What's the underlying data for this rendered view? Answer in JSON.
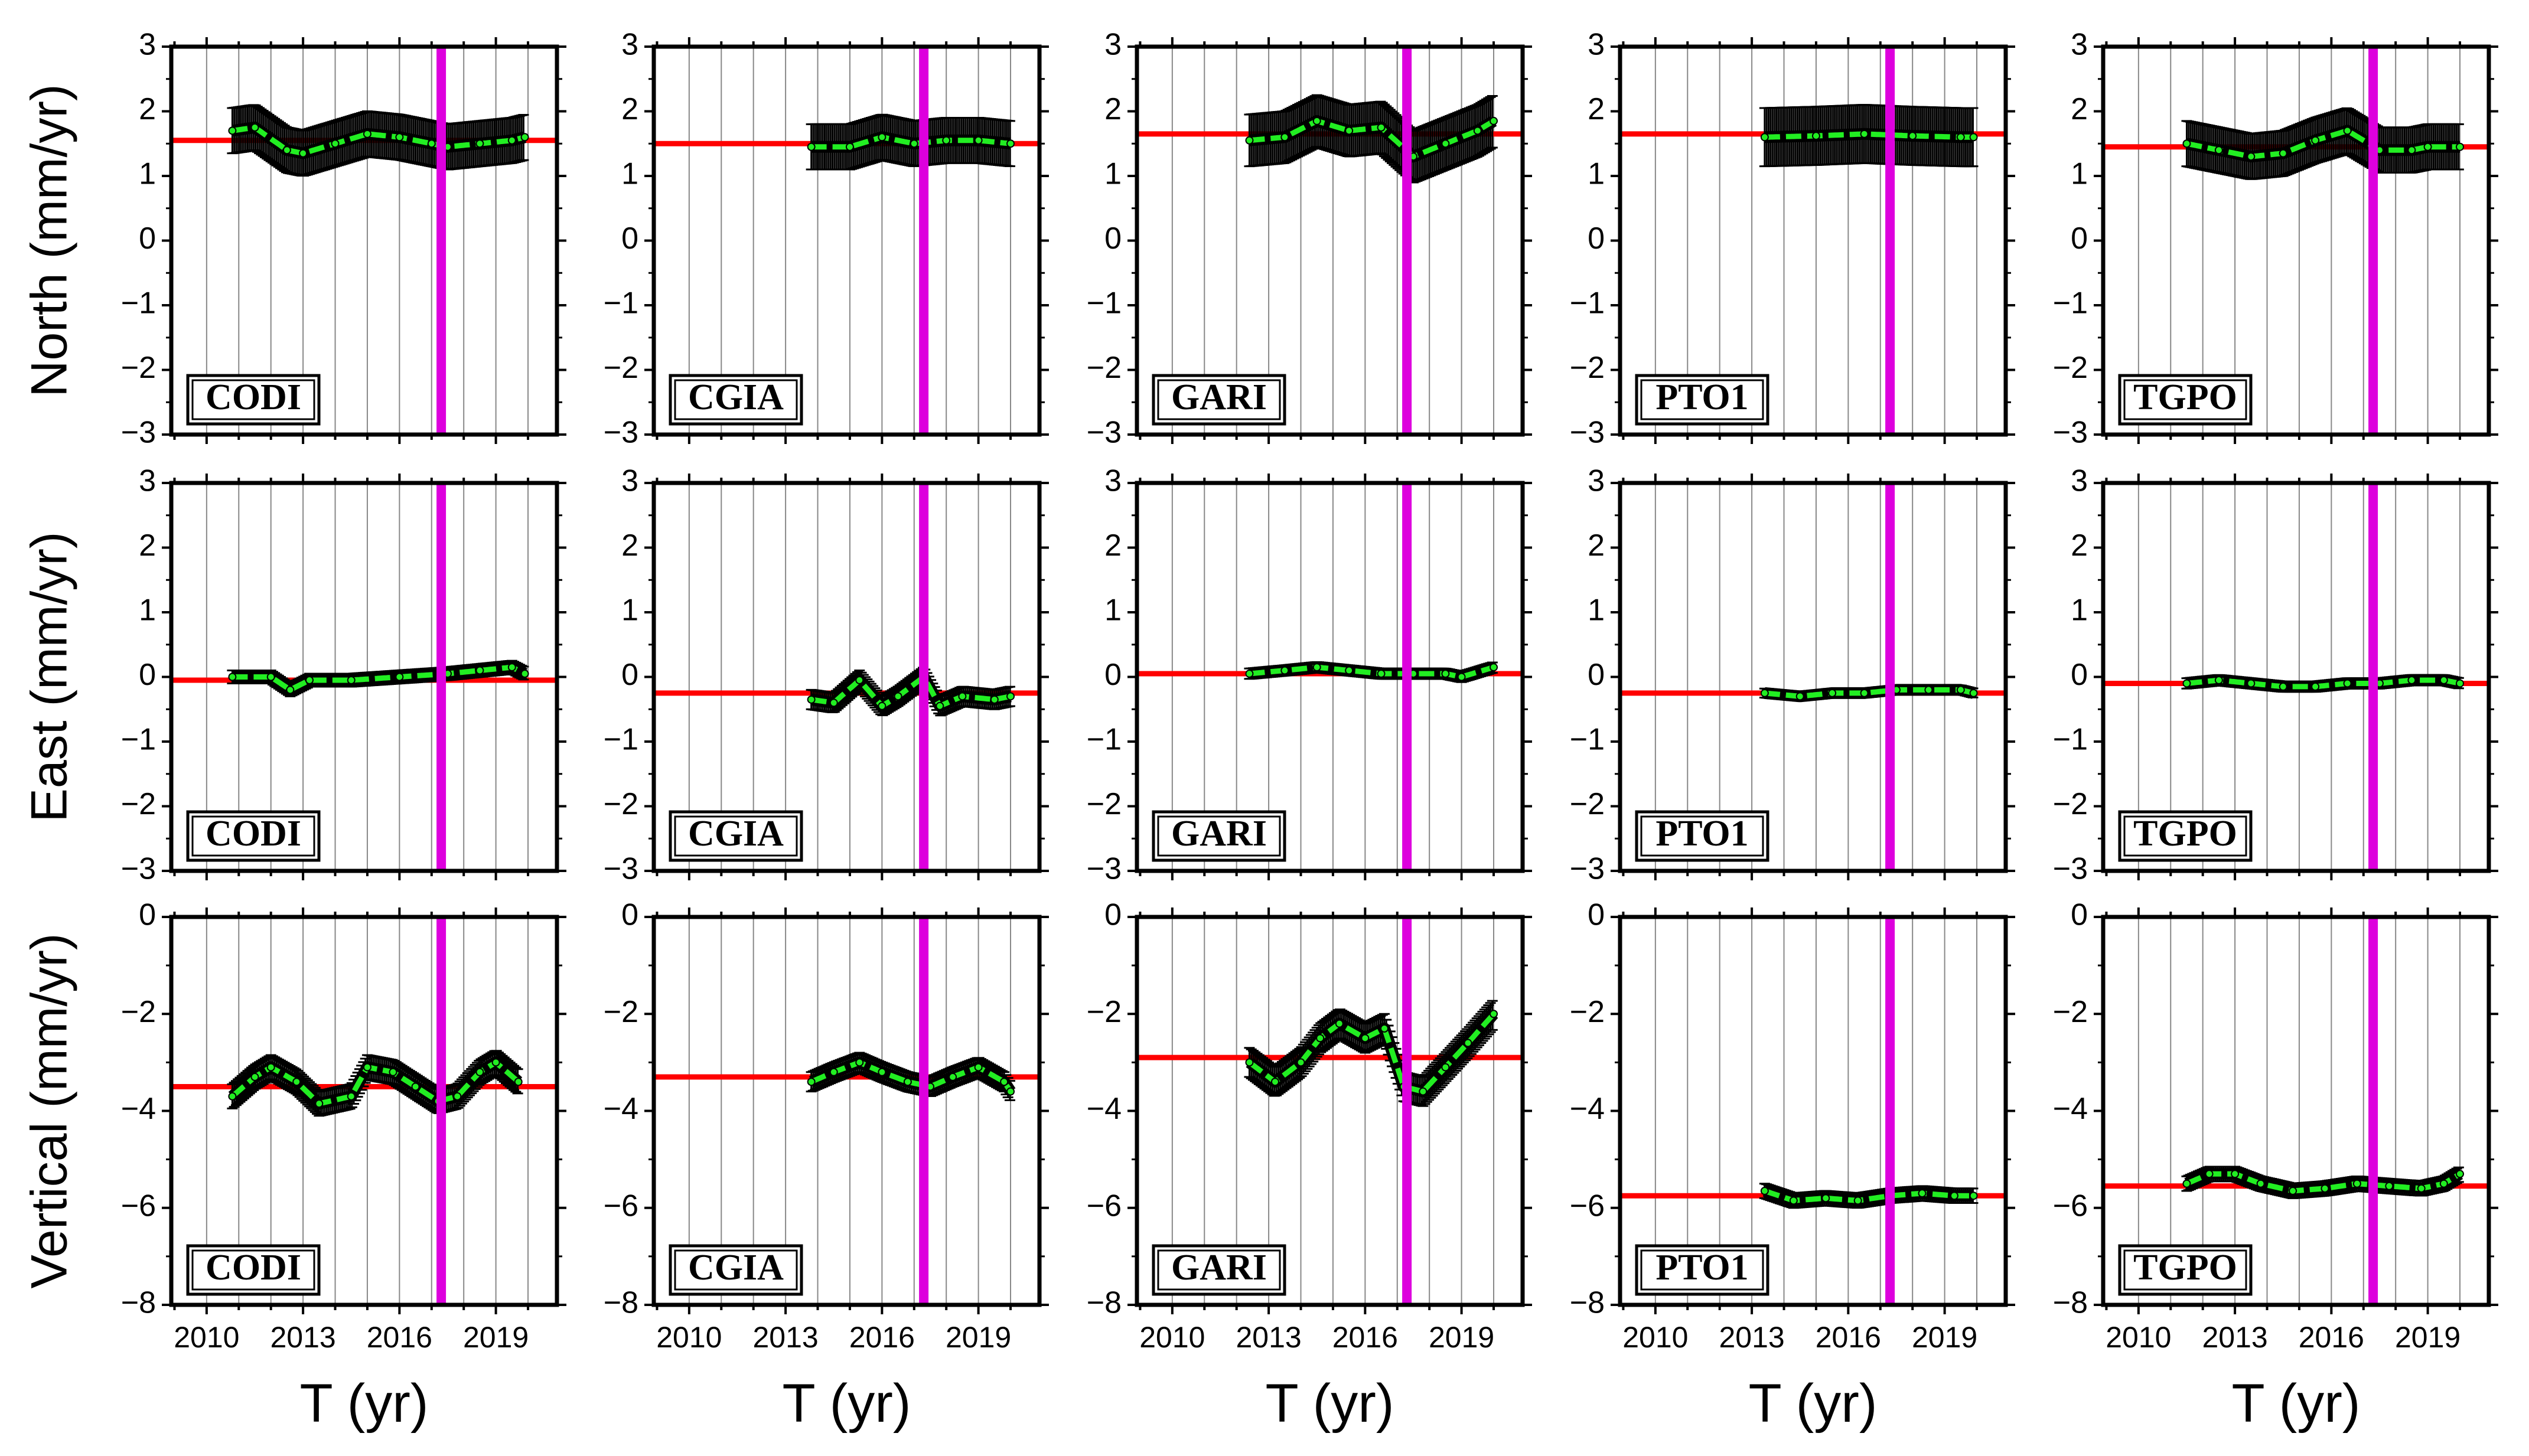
{
  "figure": {
    "row_labels": [
      "North (mm/yr)",
      "East (mm/yr)",
      "Vertical (mm/yr)"
    ],
    "xlabel": "T (yr)",
    "x_ticks": [
      "2010",
      "2013",
      "2016",
      "2019"
    ],
    "stations": [
      "CODI",
      "CGIA",
      "GARI",
      "PTO1",
      "TGPO"
    ]
  },
  "colors": {
    "reference_line": "#ff0000",
    "event_line": "#dd00dd",
    "rate_curve": "#22ee22",
    "error_bars": "#000000",
    "grid": "#888888"
  },
  "chart_data": [
    {
      "type": "line",
      "component": "North",
      "station": "CODI",
      "xlim": [
        2008.9,
        2020.9
      ],
      "ylim": [
        -3,
        3
      ],
      "y_ticks": [
        3,
        2,
        1,
        0,
        -1,
        -2,
        -3
      ],
      "reference_y": 1.55,
      "event_x": 2017.3,
      "x": [
        2010.8,
        2011.5,
        2012.5,
        2013.0,
        2014.0,
        2015.0,
        2016.0,
        2017.0,
        2017.5,
        2018.5,
        2019.5,
        2019.9
      ],
      "y": [
        1.7,
        1.75,
        1.4,
        1.35,
        1.5,
        1.65,
        1.6,
        1.5,
        1.45,
        1.5,
        1.55,
        1.6
      ],
      "error": 0.35
    },
    {
      "type": "line",
      "component": "North",
      "station": "CGIA",
      "xlim": [
        2008.9,
        2020.9
      ],
      "ylim": [
        -3,
        3
      ],
      "y_ticks": [
        3,
        2,
        1,
        0,
        -1,
        -2,
        -3
      ],
      "reference_y": 1.5,
      "event_x": 2017.3,
      "x": [
        2013.8,
        2015.0,
        2016.0,
        2017.0,
        2018.0,
        2019.0,
        2020.0
      ],
      "y": [
        1.45,
        1.45,
        1.6,
        1.5,
        1.55,
        1.55,
        1.5
      ],
      "error": 0.35
    },
    {
      "type": "line",
      "component": "North",
      "station": "GARI",
      "xlim": [
        2008.9,
        2020.9
      ],
      "ylim": [
        -3,
        3
      ],
      "y_ticks": [
        3,
        2,
        1,
        0,
        -1,
        -2,
        -3
      ],
      "reference_y": 1.65,
      "event_x": 2017.3,
      "x": [
        2012.4,
        2013.5,
        2014.5,
        2015.5,
        2016.5,
        2017.5,
        2018.5,
        2019.5,
        2020.0
      ],
      "y": [
        1.55,
        1.6,
        1.85,
        1.7,
        1.75,
        1.3,
        1.5,
        1.7,
        1.85
      ],
      "error": 0.4
    },
    {
      "type": "line",
      "component": "North",
      "station": "PTO1",
      "xlim": [
        2008.9,
        2020.9
      ],
      "ylim": [
        -3,
        3
      ],
      "y_ticks": [
        3,
        2,
        1,
        0,
        -1,
        -2,
        -3
      ],
      "reference_y": 1.65,
      "event_x": 2017.3,
      "x": [
        2013.4,
        2015.0,
        2016.5,
        2018.0,
        2019.5,
        2019.9
      ],
      "y": [
        1.6,
        1.62,
        1.65,
        1.62,
        1.6,
        1.6
      ],
      "error": 0.45
    },
    {
      "type": "line",
      "component": "North",
      "station": "TGPO",
      "xlim": [
        2008.9,
        2020.9
      ],
      "ylim": [
        -3,
        3
      ],
      "y_ticks": [
        3,
        2,
        1,
        0,
        -1,
        -2,
        -3
      ],
      "reference_y": 1.45,
      "event_x": 2017.3,
      "x": [
        2011.5,
        2012.5,
        2013.5,
        2014.5,
        2015.5,
        2016.5,
        2017.5,
        2018.5,
        2019.0,
        2020.0
      ],
      "y": [
        1.5,
        1.4,
        1.3,
        1.35,
        1.55,
        1.7,
        1.4,
        1.4,
        1.45,
        1.45
      ],
      "error": 0.35
    },
    {
      "type": "line",
      "component": "East",
      "station": "CODI",
      "xlim": [
        2008.9,
        2020.9
      ],
      "ylim": [
        -3,
        3
      ],
      "y_ticks": [
        3,
        2,
        1,
        0,
        -1,
        -2,
        -3
      ],
      "reference_y": -0.05,
      "event_x": 2017.3,
      "x": [
        2010.8,
        2012.0,
        2012.6,
        2013.2,
        2014.5,
        2016.0,
        2017.5,
        2018.5,
        2019.5,
        2019.9
      ],
      "y": [
        0.0,
        0.0,
        -0.2,
        -0.05,
        -0.05,
        0.0,
        0.05,
        0.1,
        0.15,
        0.05
      ],
      "error": 0.1
    },
    {
      "type": "line",
      "component": "East",
      "station": "CGIA",
      "xlim": [
        2008.9,
        2020.9
      ],
      "ylim": [
        -3,
        3
      ],
      "y_ticks": [
        3,
        2,
        1,
        0,
        -1,
        -2,
        -3
      ],
      "reference_y": -0.25,
      "event_x": 2017.3,
      "x": [
        2013.8,
        2014.5,
        2015.3,
        2016.0,
        2016.5,
        2017.3,
        2017.8,
        2018.5,
        2019.5,
        2020.0
      ],
      "y": [
        -0.35,
        -0.4,
        -0.05,
        -0.45,
        -0.3,
        0.0,
        -0.45,
        -0.3,
        -0.35,
        -0.3
      ],
      "error": 0.15
    },
    {
      "type": "line",
      "component": "East",
      "station": "GARI",
      "xlim": [
        2008.9,
        2020.9
      ],
      "ylim": [
        -3,
        3
      ],
      "y_ticks": [
        3,
        2,
        1,
        0,
        -1,
        -2,
        -3
      ],
      "reference_y": 0.05,
      "event_x": 2017.3,
      "x": [
        2012.4,
        2013.5,
        2014.5,
        2015.5,
        2016.5,
        2017.5,
        2018.5,
        2019.0,
        2020.0
      ],
      "y": [
        0.05,
        0.1,
        0.15,
        0.1,
        0.05,
        0.05,
        0.05,
        0.0,
        0.15
      ],
      "error": 0.08
    },
    {
      "type": "line",
      "component": "East",
      "station": "PTO1",
      "xlim": [
        2008.9,
        2020.9
      ],
      "ylim": [
        -3,
        3
      ],
      "y_ticks": [
        3,
        2,
        1,
        0,
        -1,
        -2,
        -3
      ],
      "reference_y": -0.25,
      "event_x": 2017.3,
      "x": [
        2013.4,
        2014.5,
        2015.5,
        2016.5,
        2017.5,
        2018.5,
        2019.5,
        2019.9
      ],
      "y": [
        -0.25,
        -0.3,
        -0.25,
        -0.25,
        -0.2,
        -0.2,
        -0.2,
        -0.25
      ],
      "error": 0.07
    },
    {
      "type": "line",
      "component": "East",
      "station": "TGPO",
      "xlim": [
        2008.9,
        2020.9
      ],
      "ylim": [
        -3,
        3
      ],
      "y_ticks": [
        3,
        2,
        1,
        0,
        -1,
        -2,
        -3
      ],
      "reference_y": -0.1,
      "event_x": 2017.3,
      "x": [
        2011.5,
        2012.5,
        2013.5,
        2014.5,
        2015.5,
        2016.5,
        2017.5,
        2018.5,
        2019.5,
        2020.0
      ],
      "y": [
        -0.1,
        -0.05,
        -0.1,
        -0.15,
        -0.15,
        -0.1,
        -0.1,
        -0.05,
        -0.05,
        -0.1
      ],
      "error": 0.08
    },
    {
      "type": "line",
      "component": "Vertical",
      "station": "CODI",
      "xlim": [
        2008.9,
        2020.9
      ],
      "ylim": [
        -8,
        0
      ],
      "y_ticks": [
        0,
        -2,
        -4,
        -6,
        -8
      ],
      "reference_y": -3.5,
      "event_x": 2017.3,
      "x": [
        2010.8,
        2011.5,
        2012.0,
        2012.8,
        2013.5,
        2014.5,
        2015.0,
        2015.8,
        2016.5,
        2017.2,
        2017.8,
        2018.5,
        2019.0,
        2019.7
      ],
      "y": [
        -3.7,
        -3.3,
        -3.1,
        -3.4,
        -3.85,
        -3.7,
        -3.1,
        -3.2,
        -3.5,
        -3.8,
        -3.7,
        -3.2,
        -3.0,
        -3.4
      ],
      "error": 0.25
    },
    {
      "type": "line",
      "component": "Vertical",
      "station": "CGIA",
      "xlim": [
        2008.9,
        2020.9
      ],
      "ylim": [
        -8,
        0
      ],
      "y_ticks": [
        0,
        -2,
        -4,
        -6,
        -8
      ],
      "reference_y": -3.3,
      "event_x": 2017.3,
      "x": [
        2013.8,
        2014.5,
        2015.3,
        2016.0,
        2016.8,
        2017.5,
        2018.2,
        2019.0,
        2019.8,
        2020.0
      ],
      "y": [
        -3.4,
        -3.2,
        -3.0,
        -3.2,
        -3.4,
        -3.5,
        -3.3,
        -3.1,
        -3.4,
        -3.6
      ],
      "error": 0.2
    },
    {
      "type": "line",
      "component": "Vertical",
      "station": "GARI",
      "xlim": [
        2008.9,
        2020.9
      ],
      "ylim": [
        -8,
        0
      ],
      "y_ticks": [
        0,
        -2,
        -4,
        -6,
        -8
      ],
      "reference_y": -2.9,
      "event_x": 2017.3,
      "x": [
        2012.4,
        2013.2,
        2014.0,
        2014.6,
        2015.2,
        2016.0,
        2016.6,
        2017.2,
        2017.8,
        2018.5,
        2019.2,
        2020.0
      ],
      "y": [
        -3.0,
        -3.4,
        -3.0,
        -2.5,
        -2.2,
        -2.5,
        -2.3,
        -3.5,
        -3.6,
        -3.1,
        -2.6,
        -2.0
      ],
      "error": 0.3
    },
    {
      "type": "line",
      "component": "Vertical",
      "station": "PTO1",
      "xlim": [
        2008.9,
        2020.9
      ],
      "ylim": [
        -8,
        0
      ],
      "y_ticks": [
        0,
        -2,
        -4,
        -6,
        -8
      ],
      "reference_y": -5.75,
      "event_x": 2017.3,
      "x": [
        2013.4,
        2014.3,
        2015.3,
        2016.3,
        2017.3,
        2018.3,
        2019.3,
        2019.9
      ],
      "y": [
        -5.65,
        -5.85,
        -5.8,
        -5.85,
        -5.75,
        -5.7,
        -5.75,
        -5.75
      ],
      "error": 0.15
    },
    {
      "type": "line",
      "component": "Vertical",
      "station": "TGPO",
      "xlim": [
        2008.9,
        2020.9
      ],
      "ylim": [
        -8,
        0
      ],
      "y_ticks": [
        0,
        -2,
        -4,
        -6,
        -8
      ],
      "reference_y": -5.55,
      "event_x": 2017.3,
      "x": [
        2011.5,
        2012.2,
        2013.0,
        2013.8,
        2014.8,
        2015.8,
        2016.8,
        2017.8,
        2018.8,
        2019.5,
        2020.0
      ],
      "y": [
        -5.5,
        -5.3,
        -5.3,
        -5.5,
        -5.65,
        -5.6,
        -5.5,
        -5.55,
        -5.6,
        -5.5,
        -5.3
      ],
      "error": 0.15
    }
  ]
}
